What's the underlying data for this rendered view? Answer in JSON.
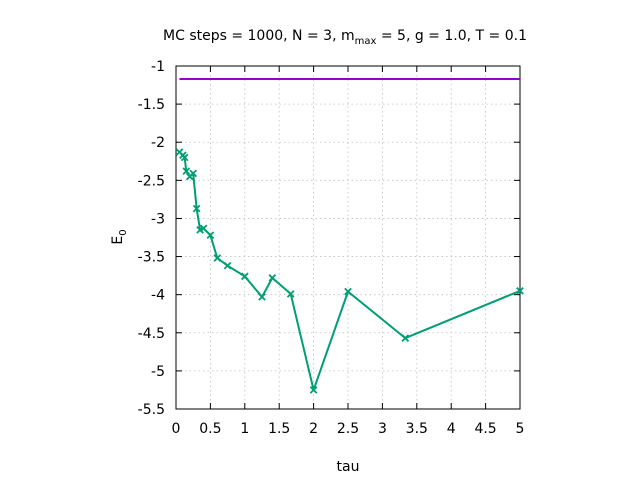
{
  "chart_data": {
    "type": "line",
    "title": {
      "prefix": "MC steps = 1000, N = 3, m",
      "sub": "max",
      "suffix": " = 5, g = 1.0, T = 0.1"
    },
    "xlabel": "tau",
    "ylabel": {
      "main": "E",
      "sub": "0"
    },
    "xlim": [
      0,
      5
    ],
    "ylim": [
      -5.5,
      -1
    ],
    "xticks": [
      0,
      0.5,
      1,
      1.5,
      2,
      2.5,
      3,
      3.5,
      4,
      4.5,
      5
    ],
    "xtick_labels": [
      "0",
      "0.5",
      "1",
      "1.5",
      "2",
      "2.5",
      "3",
      "3.5",
      "4",
      "4.5",
      "5"
    ],
    "yticks": [
      -1,
      -1.5,
      -2,
      -2.5,
      -3,
      -3.5,
      -4,
      -4.5,
      -5,
      -5.5
    ],
    "ytick_labels": [
      "-1",
      "-1.5",
      "-2",
      "-2.5",
      "-3",
      "-3.5",
      "-4",
      "-4.5",
      "-5",
      "-5.5"
    ],
    "grid": true,
    "series": [
      {
        "color": "#9400d3",
        "marker": "none",
        "x": [
          0.05,
          5
        ],
        "y": [
          -1.17,
          -1.17
        ]
      },
      {
        "color": "#009e73",
        "marker": "x",
        "x": [
          0.05,
          0.1,
          0.125,
          0.15,
          0.2,
          0.25,
          0.3,
          0.35,
          0.4,
          0.5,
          0.6,
          0.75,
          1.0,
          1.25,
          1.4,
          1.667,
          2.0,
          2.5,
          3.333,
          5.0
        ],
        "y": [
          -2.13,
          -2.17,
          -2.2,
          -2.38,
          -2.45,
          -2.41,
          -2.87,
          -3.15,
          -3.13,
          -3.22,
          -3.52,
          -3.62,
          -3.76,
          -4.03,
          -3.78,
          -3.99,
          -5.25,
          -3.96,
          -4.57,
          -3.95
        ]
      }
    ]
  }
}
